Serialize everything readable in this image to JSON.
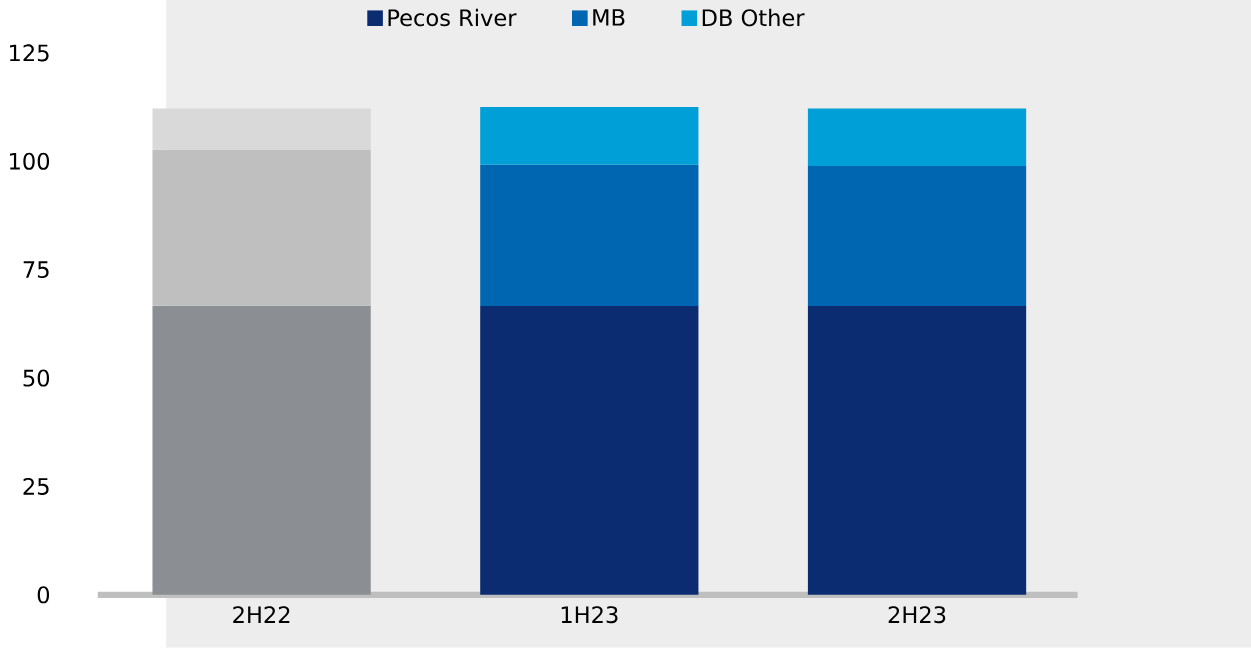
{
  "chart_data": {
    "type": "bar",
    "stacked": true,
    "categories": [
      "2H22",
      "1H23",
      "2H23"
    ],
    "series": [
      {
        "name": "Pecos River",
        "color": "#0c2c72",
        "colors": [
          "#8b8e93",
          "#0c2c72",
          "#0c2c72"
        ],
        "values": [
          66.7,
          66.6,
          66.6
        ]
      },
      {
        "name": "MB",
        "color": "#0066b1",
        "colors": [
          "#bfbfbf",
          "#0066b1",
          "#0066b1"
        ],
        "values": [
          36.0,
          32.6,
          32.3
        ]
      },
      {
        "name": "DB Other",
        "color": "#009fd8",
        "colors": [
          "#d9d9d9",
          "#009fd8",
          "#009fd8"
        ],
        "values": [
          9.5,
          13.3,
          13.3
        ]
      }
    ],
    "ylim": [
      0,
      125
    ],
    "yticks": [
      0,
      25,
      50,
      75,
      100,
      125
    ],
    "legend": "top"
  }
}
